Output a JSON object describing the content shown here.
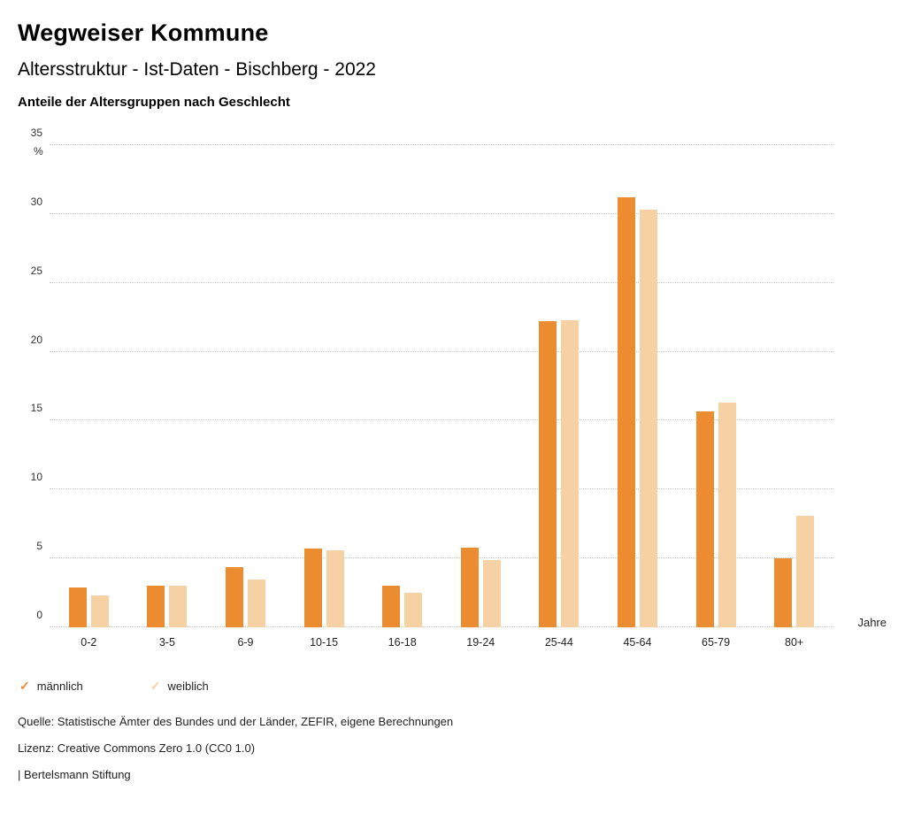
{
  "header": {
    "title": "Wegweiser Kommune",
    "subtitle": "Altersstruktur - Ist-Daten - Bischberg - 2022",
    "chart_title": "Anteile der Altersgruppen nach Geschlecht"
  },
  "chart_data": {
    "type": "bar",
    "title": "Anteile der Altersgruppen nach Geschlecht",
    "y_unit_label": "%",
    "x_unit_label": "Jahre",
    "categories": [
      "0-2",
      "3-5",
      "6-9",
      "10-15",
      "16-18",
      "19-24",
      "25-44",
      "45-64",
      "65-79",
      "80+"
    ],
    "series": [
      {
        "name": "männlich",
        "color": "#ea8c2f",
        "values": [
          2.9,
          3.0,
          4.4,
          5.7,
          3.0,
          5.8,
          22.2,
          31.2,
          15.7,
          5.0
        ]
      },
      {
        "name": "weiblich",
        "color": "#f6d1a3",
        "values": [
          2.3,
          3.0,
          3.5,
          5.6,
          2.5,
          4.9,
          22.3,
          30.3,
          16.3,
          8.1
        ]
      }
    ],
    "ylim": [
      0,
      35
    ],
    "yticks": [
      0,
      5,
      10,
      15,
      20,
      25,
      30,
      35
    ],
    "grid": true,
    "legend_position": "bottom"
  },
  "legend": {
    "items": [
      {
        "label": "männlich",
        "color": "#ea8c2f"
      },
      {
        "label": "weiblich",
        "color": "#f6d1a3"
      }
    ]
  },
  "footer": {
    "source": "Quelle: Statistische Ämter des Bundes und der Länder, ZEFIR, eigene Berechnungen",
    "license": "Lizenz: Creative Commons Zero 1.0 (CC0 1.0)",
    "attribution": "| Bertelsmann Stiftung"
  }
}
